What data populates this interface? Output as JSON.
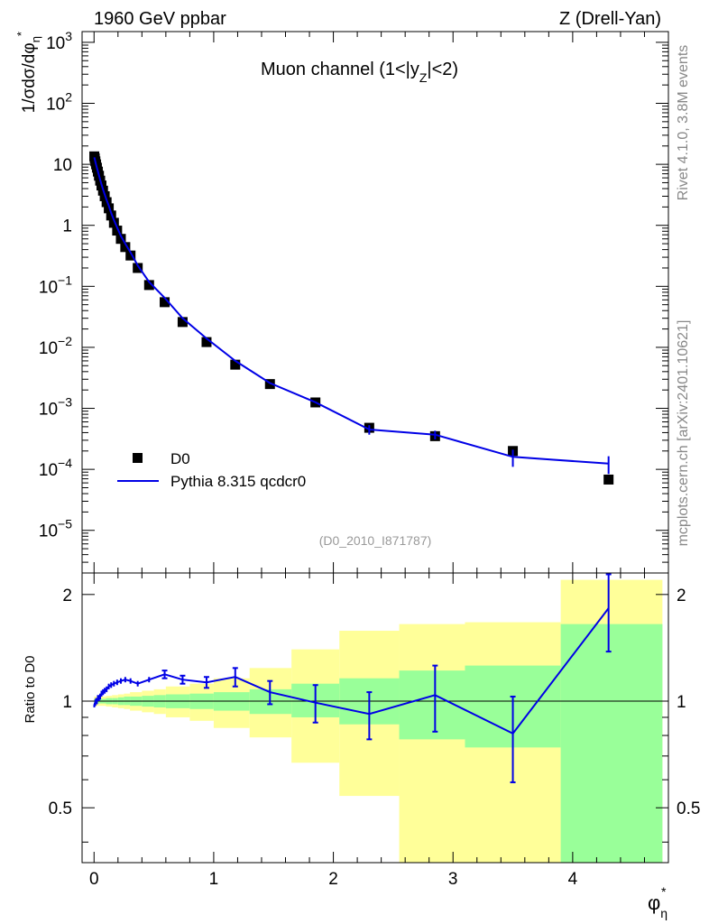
{
  "header": {
    "left": "1960 GeV ppbar",
    "right": "Z (Drell-Yan)",
    "channel_main": "Muon channel (1<|y",
    "channel_sub": "Z",
    "channel_end": "|<2)",
    "analysis": "(D0_2010_I871787)"
  },
  "side_text": {
    "rivet": "Rivet 4.1.0,  3.8M events",
    "mcplots": "mcplots.cern.ch [arXiv:2401.10621]"
  },
  "axes": {
    "ylabel_main": "1/σdσ/dφ",
    "ylabel_sub": "η",
    "ylabel_sup": "*",
    "ratio_ylabel": "Ratio to D0",
    "xlabel": "φ",
    "xlabel_sub": "η",
    "xlabel_sup": "*",
    "x_ticks": [
      "0",
      "1",
      "2",
      "3",
      "4"
    ],
    "main_y_ticks": [
      {
        "base": "10",
        "exp": "3",
        "val": 1000
      },
      {
        "base": "10",
        "exp": "2",
        "val": 100
      },
      {
        "base": "10",
        "exp": "",
        "val": 10
      },
      {
        "base": "1",
        "exp": "",
        "val": 1
      },
      {
        "base": "10",
        "exp": "−1",
        "val": 0.1
      },
      {
        "base": "10",
        "exp": "−2",
        "val": 0.01
      },
      {
        "base": "10",
        "exp": "−3",
        "val": 0.001
      },
      {
        "base": "10",
        "exp": "−4",
        "val": 0.0001
      },
      {
        "base": "10",
        "exp": "−5",
        "val": 1e-05
      }
    ],
    "ratio_y_ticks": [
      "0.5",
      "1",
      "2"
    ]
  },
  "legend": {
    "data_label": "D0",
    "mc_label": "Pythia 8.315 qcdcr0"
  },
  "colors": {
    "mc": "#0000e6",
    "band_yellow": "#ffff99",
    "band_green": "#99ff99",
    "data": "#000000"
  },
  "chart_data": {
    "type": "line",
    "title": "Muon channel (1<|yZ|<2)",
    "xlabel": "φ*η",
    "ylabel": "1/σdσ/dφ*η",
    "xlim": [
      -0.1,
      4.8
    ],
    "ylim": [
      2e-06,
      1500
    ],
    "yscale": "log",
    "ratio_ylim": [
      0.35,
      2.3
    ],
    "x": [
      0.002,
      0.006,
      0.011,
      0.017,
      0.024,
      0.032,
      0.041,
      0.051,
      0.062,
      0.075,
      0.089,
      0.105,
      0.123,
      0.143,
      0.166,
      0.193,
      0.224,
      0.261,
      0.305,
      0.365,
      0.46,
      0.59,
      0.74,
      0.94,
      1.18,
      1.47,
      1.85,
      2.3,
      2.85,
      3.5,
      4.3
    ],
    "series": [
      {
        "name": "D0",
        "values": [
          13.5,
          12.5,
          11.2,
          10.0,
          8.8,
          7.6,
          6.5,
          5.4,
          4.5,
          3.7,
          3.0,
          2.4,
          1.9,
          1.45,
          1.1,
          0.82,
          0.6,
          0.44,
          0.32,
          0.2,
          0.105,
          0.055,
          0.026,
          0.0122,
          0.0052,
          0.0025,
          0.00125,
          0.00048,
          0.00035,
          0.0002,
          6.8e-05
        ]
      },
      {
        "name": "Pythia 8.315 qcdcr0",
        "values": [
          13.0,
          12.1,
          11.0,
          9.9,
          8.8,
          7.7,
          6.6,
          5.6,
          4.7,
          3.9,
          3.2,
          2.6,
          2.1,
          1.6,
          1.22,
          0.92,
          0.67,
          0.5,
          0.36,
          0.22,
          0.118,
          0.065,
          0.03,
          0.014,
          0.006,
          0.0026,
          0.00126,
          0.00045,
          0.00037,
          0.00016,
          0.000124
        ]
      }
    ],
    "mc_errors_main": [
      0,
      0,
      0,
      0,
      0,
      0,
      0,
      0,
      0,
      0,
      0,
      0,
      0,
      0,
      0,
      0,
      0,
      0,
      0,
      0,
      0,
      0,
      0,
      0,
      0,
      0,
      0,
      8e-05,
      6e-05,
      5e-05,
      4e-05
    ],
    "ratio": {
      "values": [
        0.97,
        0.98,
        0.99,
        1.0,
        1.0,
        1.02,
        1.02,
        1.03,
        1.05,
        1.06,
        1.07,
        1.08,
        1.1,
        1.11,
        1.12,
        1.13,
        1.14,
        1.15,
        1.14,
        1.12,
        1.15,
        1.19,
        1.15,
        1.13,
        1.17,
        1.06,
        0.99,
        0.92,
        1.04,
        0.81,
        1.83
      ],
      "errors": [
        0.01,
        0.01,
        0.02,
        0.02,
        0.02,
        0.02,
        0.02,
        0.02,
        0.02,
        0.02,
        0.02,
        0.02,
        0.02,
        0.02,
        0.02,
        0.02,
        0.02,
        0.02,
        0.02,
        0.02,
        0.02,
        0.03,
        0.03,
        0.04,
        0.07,
        0.08,
        0.12,
        0.14,
        0.22,
        0.22,
        0.45
      ]
    },
    "bands": {
      "edges": [
        0,
        0.05,
        0.1,
        0.15,
        0.2,
        0.25,
        0.3,
        0.4,
        0.5,
        0.6,
        0.8,
        1.0,
        1.3,
        1.65,
        2.05,
        2.55,
        3.1,
        3.9,
        4.75
      ],
      "green": [
        [
          0.985,
          1.015
        ],
        [
          0.985,
          1.015
        ],
        [
          0.98,
          1.02
        ],
        [
          0.98,
          1.02
        ],
        [
          0.975,
          1.025
        ],
        [
          0.975,
          1.03
        ],
        [
          0.97,
          1.03
        ],
        [
          0.965,
          1.035
        ],
        [
          0.96,
          1.04
        ],
        [
          0.955,
          1.045
        ],
        [
          0.95,
          1.05
        ],
        [
          0.94,
          1.06
        ],
        [
          0.92,
          1.08
        ],
        [
          0.9,
          1.12
        ],
        [
          0.86,
          1.16
        ],
        [
          0.78,
          1.22
        ],
        [
          0.74,
          1.26
        ],
        [
          0.35,
          1.65
        ],
        [
          0.35,
          1.65
        ]
      ],
      "yellow": [
        [
          0.97,
          1.03
        ],
        [
          0.97,
          1.03
        ],
        [
          0.965,
          1.035
        ],
        [
          0.96,
          1.04
        ],
        [
          0.955,
          1.045
        ],
        [
          0.95,
          1.05
        ],
        [
          0.94,
          1.06
        ],
        [
          0.93,
          1.07
        ],
        [
          0.92,
          1.08
        ],
        [
          0.9,
          1.1
        ],
        [
          0.88,
          1.12
        ],
        [
          0.84,
          1.16
        ],
        [
          0.79,
          1.24
        ],
        [
          0.67,
          1.4
        ],
        [
          0.54,
          1.58
        ],
        [
          0.35,
          1.65
        ],
        [
          0.35,
          1.67
        ],
        [
          0.35,
          2.2
        ],
        [
          0.35,
          2.2
        ]
      ]
    }
  }
}
